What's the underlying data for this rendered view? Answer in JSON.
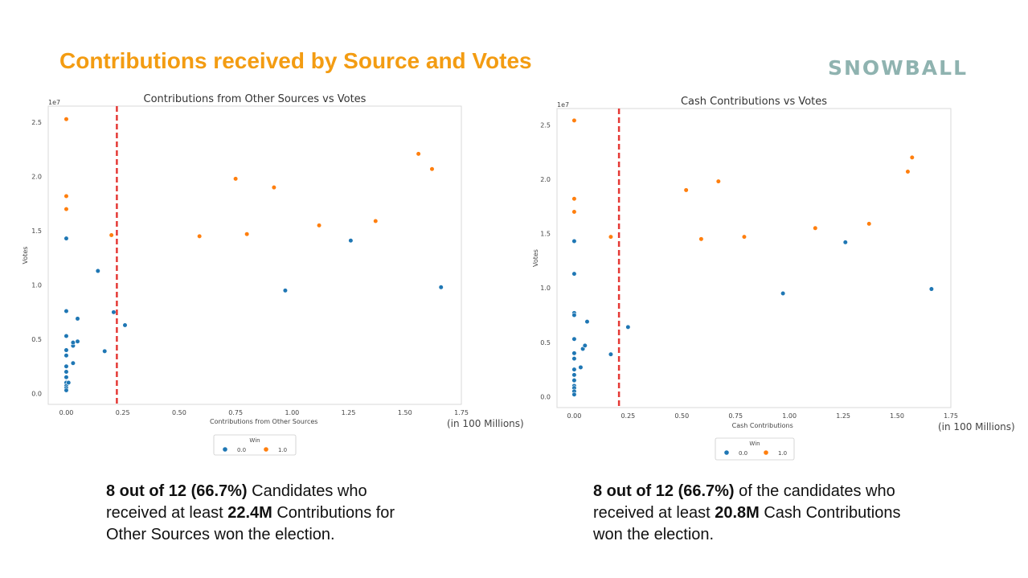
{
  "header": {
    "title": "Contributions received by Source and Votes",
    "logo_text": "SNOWBALL"
  },
  "colors": {
    "title": "#f39c12",
    "logo": "#8fb3b0",
    "win_0": "#1f77b4",
    "win_1": "#ff7f0e",
    "threshold_line": "#e53935"
  },
  "chart_data": [
    {
      "type": "scatter",
      "title": "Contributions from Other Sources vs Votes",
      "xlabel": "Contributions from Other Sources",
      "ylabel": "Votes",
      "y_offset_label": "1e7",
      "unit_note": "(in 100 Millions)",
      "xlim": [
        -0.08,
        1.75
      ],
      "ylim": [
        -0.1,
        2.65
      ],
      "xticks": [
        0.0,
        0.25,
        0.5,
        0.75,
        1.0,
        1.25,
        1.5,
        1.75
      ],
      "xtick_labels": [
        "0.00",
        "0.25",
        "0.50",
        "0.75",
        "1.00",
        "1.25",
        "1.50",
        "1.75"
      ],
      "yticks": [
        0.0,
        0.5,
        1.0,
        1.5,
        2.0,
        2.5
      ],
      "ytick_labels": [
        "0.0",
        "0.5",
        "1.0",
        "1.5",
        "2.0",
        "2.5"
      ],
      "grid": false,
      "threshold_x": 0.224,
      "legend": {
        "title": "Win",
        "position": "below",
        "labels": [
          "0.0",
          "1.0"
        ]
      },
      "series": [
        {
          "name": "0.0",
          "points": [
            [
              0.0,
              1.43
            ],
            [
              0.0,
              0.76
            ],
            [
              0.0,
              0.53
            ],
            [
              0.0,
              0.4
            ],
            [
              0.0,
              0.35
            ],
            [
              0.0,
              0.25
            ],
            [
              0.0,
              0.2
            ],
            [
              0.0,
              0.15
            ],
            [
              0.0,
              0.1
            ],
            [
              0.0,
              0.07
            ],
            [
              0.0,
              0.05
            ],
            [
              0.0,
              0.03
            ],
            [
              0.01,
              0.1
            ],
            [
              0.03,
              0.44
            ],
            [
              0.03,
              0.47
            ],
            [
              0.03,
              0.28
            ],
            [
              0.05,
              0.69
            ],
            [
              0.05,
              0.48
            ],
            [
              0.14,
              1.13
            ],
            [
              0.17,
              0.39
            ],
            [
              0.21,
              0.75
            ],
            [
              0.26,
              0.63
            ],
            [
              0.97,
              0.95
            ],
            [
              1.26,
              1.41
            ],
            [
              1.66,
              0.98
            ]
          ]
        },
        {
          "name": "1.0",
          "points": [
            [
              0.0,
              2.53
            ],
            [
              0.0,
              1.82
            ],
            [
              0.0,
              1.7
            ],
            [
              0.2,
              1.46
            ],
            [
              0.59,
              1.45
            ],
            [
              0.75,
              1.98
            ],
            [
              0.8,
              1.47
            ],
            [
              0.92,
              1.9
            ],
            [
              1.12,
              1.55
            ],
            [
              1.37,
              1.59
            ],
            [
              1.56,
              2.21
            ],
            [
              1.62,
              2.07
            ]
          ]
        }
      ]
    },
    {
      "type": "scatter",
      "title": "Cash Contributions vs Votes",
      "xlabel": "Cash Contributions",
      "ylabel": "Votes",
      "y_offset_label": "1e7",
      "unit_note": "(in 100 Millions)",
      "xlim": [
        -0.08,
        1.75
      ],
      "ylim": [
        -0.1,
        2.65
      ],
      "xticks": [
        0.0,
        0.25,
        0.5,
        0.75,
        1.0,
        1.25,
        1.5,
        1.75
      ],
      "xtick_labels": [
        "0.00",
        "0.25",
        "0.50",
        "0.75",
        "1.00",
        "1.25",
        "1.50",
        "1.75"
      ],
      "yticks": [
        0.0,
        0.5,
        1.0,
        1.5,
        2.0,
        2.5
      ],
      "ytick_labels": [
        "0.0",
        "0.5",
        "1.0",
        "1.5",
        "2.0",
        "2.5"
      ],
      "grid": false,
      "threshold_x": 0.208,
      "legend": {
        "title": "Win",
        "position": "below",
        "labels": [
          "0.0",
          "1.0"
        ]
      },
      "series": [
        {
          "name": "0.0",
          "points": [
            [
              0.0,
              1.43
            ],
            [
              0.0,
              1.13
            ],
            [
              0.0,
              0.77
            ],
            [
              0.0,
              0.75
            ],
            [
              0.0,
              0.53
            ],
            [
              0.0,
              0.4
            ],
            [
              0.0,
              0.35
            ],
            [
              0.0,
              0.25
            ],
            [
              0.0,
              0.2
            ],
            [
              0.0,
              0.15
            ],
            [
              0.0,
              0.1
            ],
            [
              0.0,
              0.08
            ],
            [
              0.0,
              0.05
            ],
            [
              0.0,
              0.02
            ],
            [
              0.03,
              0.27
            ],
            [
              0.04,
              0.44
            ],
            [
              0.05,
              0.47
            ],
            [
              0.06,
              0.69
            ],
            [
              0.17,
              0.39
            ],
            [
              0.25,
              0.64
            ],
            [
              0.97,
              0.95
            ],
            [
              1.26,
              1.42
            ],
            [
              1.66,
              0.99
            ]
          ]
        },
        {
          "name": "1.0",
          "points": [
            [
              0.0,
              2.54
            ],
            [
              0.0,
              1.82
            ],
            [
              0.0,
              1.7
            ],
            [
              0.17,
              1.47
            ],
            [
              0.52,
              1.9
            ],
            [
              0.59,
              1.45
            ],
            [
              0.67,
              1.98
            ],
            [
              0.79,
              1.47
            ],
            [
              1.12,
              1.55
            ],
            [
              1.37,
              1.59
            ],
            [
              1.55,
              2.07
            ],
            [
              1.57,
              2.2
            ]
          ]
        }
      ]
    }
  ],
  "captions": {
    "left": {
      "part1": "8 out of 12 (66.7%)",
      "part2": " Candidates who received at least ",
      "part3": "22.4M",
      "part4": " Contributions for Other Sources won the election."
    },
    "right": {
      "part1": "8 out of 12 (66.7%)",
      "part2": " of the candidates who received at least ",
      "part3": "20.8M",
      "part4": " Cash Contributions won the election."
    }
  }
}
